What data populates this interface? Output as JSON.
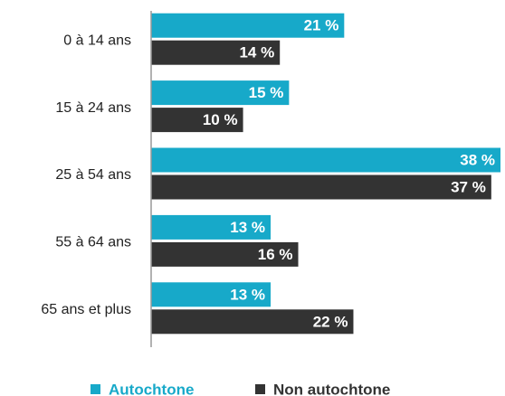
{
  "chart_data": {
    "type": "bar",
    "orientation": "horizontal",
    "categories": [
      "0 à 14 ans",
      "15 à 24 ans",
      "25 à 54 ans",
      "55 à 64 ans",
      "65 ans et plus"
    ],
    "series": [
      {
        "name": "Autochtone",
        "color": "#17a9c9",
        "values": [
          21,
          15,
          38,
          13,
          13
        ],
        "value_labels": [
          "21 %",
          "15 %",
          "38 %",
          "13 %",
          "13 %"
        ]
      },
      {
        "name": "Non autochtone",
        "color": "#333333",
        "values": [
          14,
          10,
          37,
          16,
          22
        ],
        "value_labels": [
          "14 %",
          "10 %",
          "37 %",
          "16 %",
          "22 %"
        ]
      }
    ],
    "legend": "bottom"
  }
}
